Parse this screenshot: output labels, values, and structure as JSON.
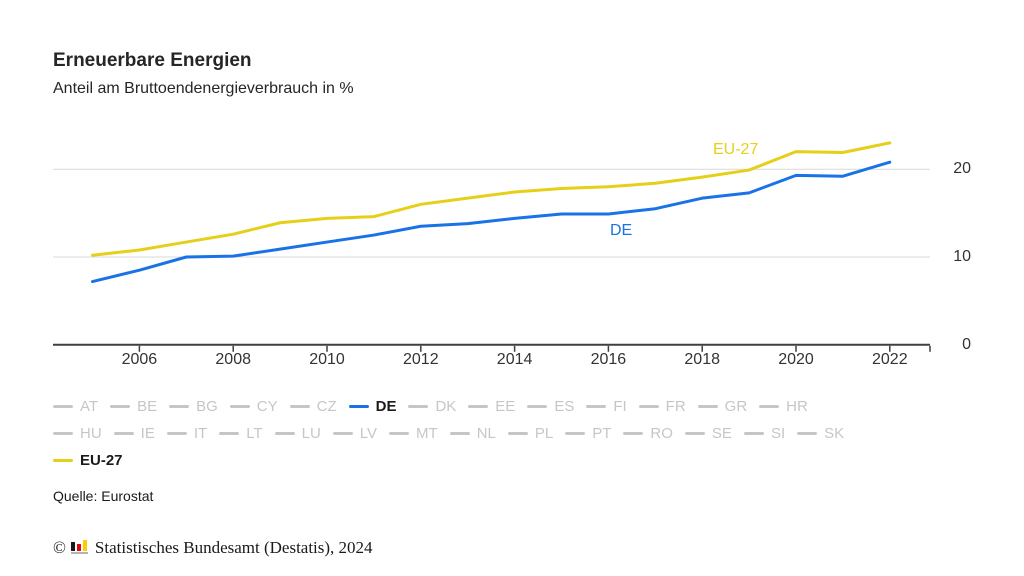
{
  "header": {
    "title": "Erneuerbare Energien",
    "subtitle": "Anteil am Bruttoendenergieverbrauch in %"
  },
  "chart_data": {
    "type": "line",
    "title": "Erneuerbare Energien",
    "subtitle": "Anteil am Bruttoendenergieverbrauch in %",
    "x": [
      2005,
      2006,
      2007,
      2008,
      2009,
      2010,
      2011,
      2012,
      2013,
      2014,
      2015,
      2016,
      2017,
      2018,
      2019,
      2020,
      2021,
      2022
    ],
    "series": [
      {
        "name": "EU-27",
        "color": "#e6cf19",
        "values": [
          10.2,
          10.8,
          11.7,
          12.6,
          13.9,
          14.4,
          14.6,
          16.0,
          16.7,
          17.4,
          17.8,
          18.0,
          18.4,
          19.1,
          19.9,
          22.0,
          21.9,
          23.0
        ]
      },
      {
        "name": "DE",
        "color": "#1973e6",
        "values": [
          7.2,
          8.5,
          10.0,
          10.1,
          10.9,
          11.7,
          12.5,
          13.5,
          13.8,
          14.4,
          14.9,
          14.9,
          15.5,
          16.7,
          17.3,
          19.3,
          19.2,
          20.8
        ]
      }
    ],
    "x_ticks": [
      2006,
      2008,
      2010,
      2012,
      2014,
      2016,
      2018,
      2020,
      2022
    ],
    "y_ticks": [
      0,
      10,
      20
    ],
    "ylim": [
      0,
      24.5
    ],
    "grid": "horizontal",
    "legend_position": "bottom",
    "in_chart_labels": [
      "EU-27",
      "DE"
    ]
  },
  "legend": {
    "rows": [
      [
        "AT",
        "BE",
        "BG",
        "CY",
        "CZ",
        "DE",
        "DK",
        "EE",
        "ES",
        "FI",
        "FR",
        "GR",
        "HR"
      ],
      [
        "HU",
        "IE",
        "IT",
        "LT",
        "LU",
        "LV",
        "MT",
        "NL",
        "PL",
        "PT",
        "RO",
        "SE",
        "SI",
        "SK"
      ],
      [
        "EU-27"
      ]
    ],
    "active": {
      "DE": "#1973e6",
      "EU-27": "#e6cf19"
    },
    "inactive_color": "#c6c6c6",
    "active_text_color": "#1a1a1a"
  },
  "source": {
    "label": "Quelle: Eurostat"
  },
  "footer": {
    "copyright": "©",
    "text": "Statistisches Bundesamt (Destatis), 2024",
    "logo_colors": [
      "#1a1a1a",
      "#e30613",
      "#ffcc00"
    ]
  }
}
